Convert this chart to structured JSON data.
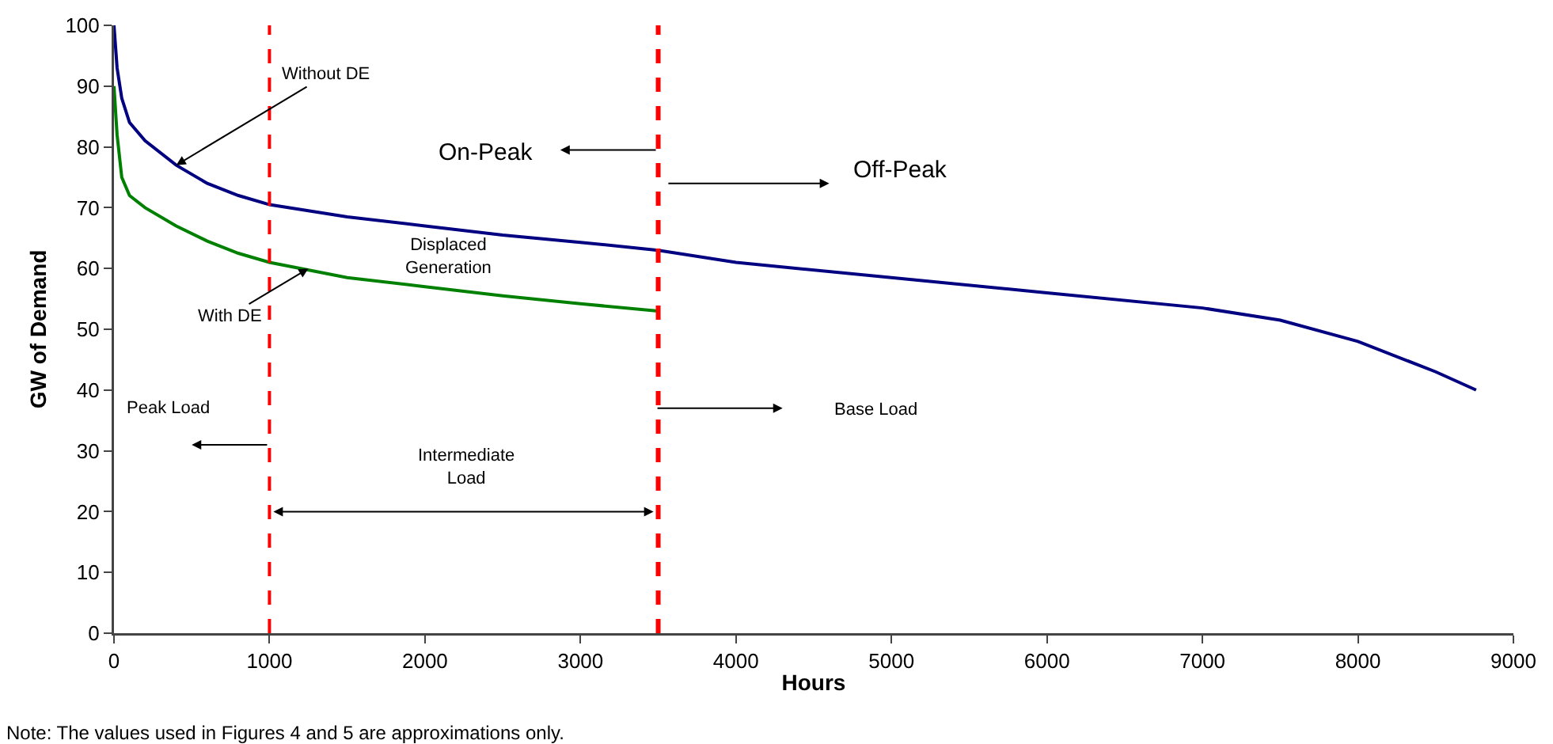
{
  "chart_data": {
    "type": "line",
    "xlabel": "Hours",
    "ylabel": "GW of Demand",
    "series": [
      {
        "color": "#000080",
        "x": [
          0,
          20,
          50,
          100,
          200,
          400,
          600,
          800,
          1000,
          1500,
          2000,
          2500,
          3000,
          3500,
          4000,
          5000,
          6000,
          7000,
          7500,
          8000,
          8500,
          8760
        ],
        "values": [
          100,
          93,
          88,
          84,
          81,
          77,
          74,
          72,
          70.5,
          68.5,
          67,
          65.5,
          64.3,
          63,
          61,
          58.5,
          56,
          53.5,
          51.5,
          48,
          43,
          40
        ]
      },
      {
        "color": "#008000",
        "x": [
          0,
          20,
          50,
          100,
          200,
          400,
          600,
          800,
          1000,
          1500,
          2000,
          2500,
          3000,
          3500
        ],
        "values": [
          90,
          82,
          75,
          72,
          70,
          67,
          64.5,
          62.5,
          61,
          58.5,
          57,
          55.5,
          54.2,
          53
        ]
      }
    ],
    "xlim": [
      0,
      9000
    ],
    "xticks": [
      0,
      1000,
      2000,
      3000,
      4000,
      5000,
      6000,
      7000,
      8000,
      9000
    ],
    "ylim": [
      0,
      100
    ],
    "yticks": [
      0,
      10,
      20,
      30,
      40,
      50,
      60,
      70,
      80,
      90,
      100
    ],
    "grid": false,
    "marker": "none",
    "line_style": "solid",
    "ref_lines": [
      {
        "axis": "x",
        "value": 1000,
        "color": "#ff0000",
        "line_style": "dashed"
      },
      {
        "axis": "x",
        "value": 3500,
        "color": "#ff0000",
        "line_style": "dashed"
      }
    ],
    "annotations": [
      {
        "text": "Without DE",
        "x": 400,
        "y": 77
      },
      {
        "text": "With DE",
        "x": 1250,
        "y": 60
      },
      "Displaced Generation",
      "On-Peak",
      "Off-Peak",
      "Peak Load",
      "Intermediate Load",
      "Base Load",
      "Note: The values used in Figures 4 and 5 are approximations only."
    ]
  }
}
